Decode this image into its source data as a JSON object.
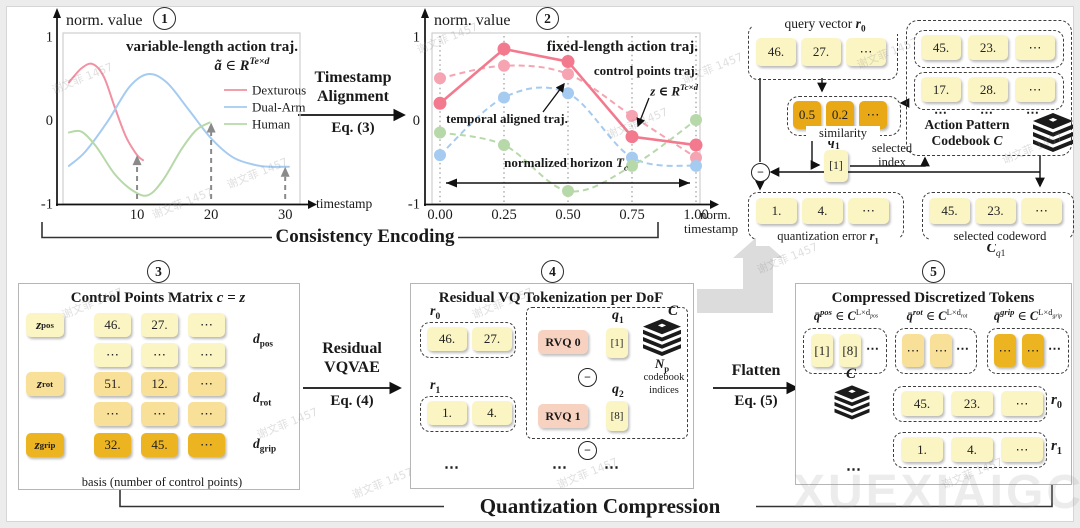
{
  "glyphs": {
    "minus": "−"
  },
  "watermark": {
    "big": "XUEXIAIGC",
    "small": "谢文菲 1457"
  },
  "stage_labels": {
    "consistency": "Consistency Encoding",
    "quantization": "Quantization Compression"
  },
  "flow_arrows": {
    "t_align": {
      "line1": "Timestamp",
      "line2": "Alignment",
      "eq": "Eq. (3)"
    },
    "rvqvae": {
      "line1": "Residual",
      "line2": "VQVAE",
      "eq": "Eq. (4)"
    },
    "flatten": {
      "line1": "Flatten",
      "eq": "Eq. (5)"
    }
  },
  "chart_data": [
    {
      "id": "chart1",
      "type": "line",
      "number": "1",
      "title": "variable-length action traj.",
      "formula": {
        "lhs": "ã",
        "mid": " ∈ ",
        "set": "R",
        "sup": "Te×d"
      },
      "ylabel": "norm. value",
      "xlabel": "timestamp",
      "ylim": [
        -1,
        1
      ],
      "yticks": [
        "1",
        "0",
        "-1"
      ],
      "xticks": [
        10,
        20,
        30
      ],
      "xlim": [
        0,
        32
      ],
      "legend_position": "middle-right",
      "grid": false,
      "series": [
        {
          "name": "Dexturous",
          "color": "#f191a1",
          "x": [
            0.8,
            2.5,
            4,
            5.5,
            7,
            8.5,
            10,
            10.8
          ],
          "y": [
            0.45,
            0.62,
            0.67,
            0.52,
            0.15,
            -0.2,
            -0.42,
            -0.48
          ]
        },
        {
          "name": "Dual-Arm",
          "color": "#a5cbf1",
          "x": [
            0.8,
            3,
            6,
            9,
            11.5,
            14,
            17,
            20,
            23,
            26,
            28,
            30.5
          ],
          "y": [
            -0.55,
            -0.38,
            -0.02,
            0.4,
            0.55,
            0.45,
            0.12,
            -0.22,
            -0.45,
            -0.54,
            -0.56,
            -0.56
          ]
        },
        {
          "name": "Human",
          "color": "#b7d9a9",
          "x": [
            0.8,
            2.5,
            4.5,
            7,
            9.5,
            11.5,
            13.5,
            16,
            18,
            19.8
          ],
          "y": [
            -0.15,
            -0.14,
            -0.32,
            -0.65,
            -0.85,
            -0.9,
            -0.72,
            -0.35,
            -0.12,
            -0.03
          ]
        }
      ],
      "marker_arrows": [
        {
          "x": 10,
          "tip": -0.42
        },
        {
          "x": 20,
          "tip": -0.03
        },
        {
          "x": 30,
          "tip": -0.56
        }
      ]
    },
    {
      "id": "chart2",
      "type": "line",
      "number": "2",
      "title": "fixed-length action traj.",
      "labels": {
        "control": "control points traj.",
        "formula": {
          "lhs": "z",
          "mid": " ∈ ",
          "set": "R",
          "sup": "Tc×d"
        },
        "temporal": "temporal aligned traj.",
        "horizon_pre": "normalized horizon ",
        "horizon_var": "T",
        "horizon_sub": "c"
      },
      "ylabel": "norm. value",
      "xlabel_line1": "norm.",
      "xlabel_line2": "timestamp",
      "ylim": [
        -1,
        1
      ],
      "yticks": [
        "1",
        "0",
        "-1"
      ],
      "categories": [
        "0.00",
        "0.25",
        "0.50",
        "0.75",
        "1.00"
      ],
      "grid": "dotted-vertical",
      "series": [
        {
          "name": "temporal aligned traj.",
          "style": "dashed",
          "color": "#f6a4b2",
          "values": [
            0.5,
            0.65,
            0.55,
            0.05,
            -0.45
          ]
        },
        {
          "name": "Dual-Arm aligned",
          "style": "dashed",
          "color": "#a5cbf1",
          "values": [
            -0.42,
            0.27,
            0.32,
            -0.45,
            -0.55
          ]
        },
        {
          "name": "Human aligned",
          "style": "dashed",
          "color": "#b7d9a9",
          "values": [
            -0.15,
            -0.3,
            -0.85,
            -0.55,
            0.0
          ]
        },
        {
          "name": "control points traj.",
          "style": "solid",
          "color": "#f37a8e",
          "values": [
            0.2,
            0.85,
            0.7,
            -0.2,
            -0.3
          ]
        }
      ]
    }
  ],
  "tr": {
    "qv": {
      "label": "query vector ",
      "var": "r",
      "sub": "0",
      "cells": [
        "46.",
        "27.",
        "⋯"
      ]
    },
    "sim": {
      "cells": [
        "0.5",
        "0.2",
        "⋯"
      ],
      "label": "similarity"
    },
    "q1": {
      "var": "q",
      "sub": "1",
      "cell": "[1]"
    },
    "sel_index": {
      "line1": "selected",
      "line2": "index"
    },
    "codebook": {
      "rows": [
        [
          "45.",
          "23.",
          "⋯"
        ],
        [
          "17.",
          "28.",
          "⋯"
        ]
      ],
      "dots": [
        "⋯",
        "⋯",
        "⋯"
      ],
      "title1": "Action Pattern",
      "title2": "Codebook ",
      "var": "C"
    },
    "qerr": {
      "cells": [
        "1.",
        "4.",
        "⋯"
      ],
      "label": "quantization error ",
      "var": "r",
      "sub": "1"
    },
    "cw": {
      "cells": [
        "45.",
        "23.",
        "⋯"
      ],
      "label": "selected codeword",
      "var": "C",
      "subvar": "q",
      "subnum": "1"
    }
  },
  "s3": {
    "number": "3",
    "title_pre": "Control Points Matrix ",
    "title_var": "c = z",
    "rows": [
      {
        "cells": [
          "46.",
          "27.",
          "⋯"
        ],
        "tone": "light"
      },
      {
        "cells": [
          "⋯",
          "⋯",
          "⋯"
        ],
        "tone": "light"
      },
      {
        "cells": [
          "51.",
          "12.",
          "⋯"
        ],
        "tone": "mid"
      },
      {
        "cells": [
          "⋯",
          "⋯",
          "⋯"
        ],
        "tone": "mid"
      },
      {
        "cells": [
          "32.",
          "45.",
          "⋯"
        ],
        "tone": "deep"
      }
    ],
    "z": [
      {
        "var": "z",
        "sub": "pos"
      },
      {
        "var": "z",
        "sub": "rot"
      },
      {
        "var": "z",
        "sub": "grip"
      }
    ],
    "d": [
      {
        "var": "d",
        "sub": "pos"
      },
      {
        "var": "d",
        "sub": "rot"
      },
      {
        "var": "d",
        "sub": "grip"
      }
    ],
    "basis": "basis (number of control points)"
  },
  "s4": {
    "number": "4",
    "title": "Residual VQ Tokenization per DoF",
    "r0": {
      "var": "r",
      "sub": "0",
      "cells": [
        "46.",
        "27."
      ]
    },
    "r1": {
      "var": "r",
      "sub": "1",
      "cells": [
        "1.",
        "4."
      ]
    },
    "rvq0": "RVQ 0",
    "rvq1": "RVQ 1",
    "q1": {
      "var": "q",
      "sub": "1",
      "cell": "[1]"
    },
    "q2": {
      "var": "q",
      "sub": "2",
      "cell": "[8]"
    },
    "cvar": "C",
    "np": {
      "var": "N",
      "sub": "p"
    },
    "cb_lines": {
      "line1": "codebook",
      "line2": "indices"
    },
    "dots": [
      "⋯",
      "⋯",
      "⋯"
    ]
  },
  "s5": {
    "number": "5",
    "title": "Compressed Discretized Tokens",
    "groups": [
      {
        "head": {
          "q": "q̄",
          "sup": "pos",
          "mid": " ∈ ",
          "cvar": "C",
          "exp": "L×d",
          "sub": "pos"
        },
        "cells": [
          "[1]",
          "[8]"
        ],
        "dots": "⋯",
        "tone": "light"
      },
      {
        "head": {
          "q": "q̄",
          "sup": "rot",
          "mid": " ∈ ",
          "cvar": "C",
          "exp": "L×d",
          "sub": "rot"
        },
        "cells": [
          "⋯",
          "⋯"
        ],
        "dots": "⋯",
        "tone": "mid"
      },
      {
        "head": {
          "q": "q̄",
          "sup": "grip",
          "mid": " ∈ ",
          "cvar": "C",
          "exp": "L×d",
          "sub": "grip"
        },
        "cells": [
          "⋯",
          "⋯"
        ],
        "dots": "⋯",
        "tone": "deep"
      }
    ],
    "cvar": "C",
    "r0": {
      "var": "r",
      "sub": "0",
      "cells": [
        "45.",
        "23.",
        "⋯"
      ]
    },
    "r1": {
      "var": "r",
      "sub": "1",
      "cells": [
        "1.",
        "4.",
        "⋯"
      ]
    },
    "dots": "⋯"
  }
}
